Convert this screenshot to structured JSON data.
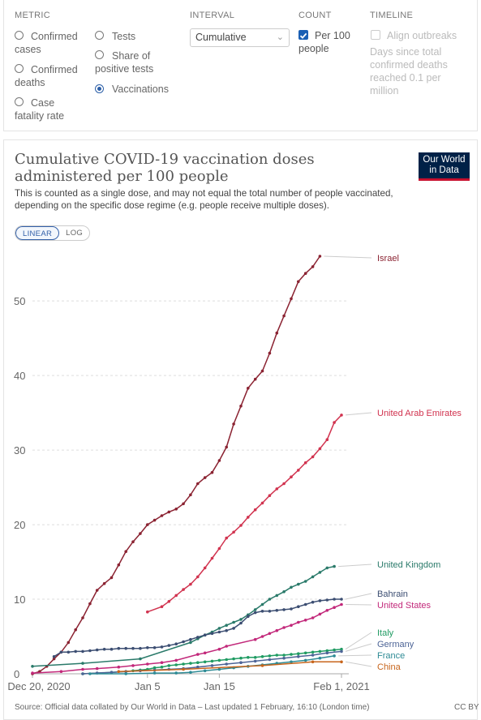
{
  "controls": {
    "metric": {
      "heading": "METRIC",
      "options": [
        "Confirmed cases",
        "Tests",
        "Confirmed deaths",
        "Share of positive tests",
        "Case fatality rate",
        "Vaccinations"
      ],
      "selected": "Vaccinations"
    },
    "interval": {
      "heading": "INTERVAL",
      "value": "Cumulative"
    },
    "count": {
      "heading": "COUNT",
      "label": "Per 100 people",
      "checked": true
    },
    "timeline": {
      "heading": "TIMELINE",
      "label": "Align outbreaks",
      "note": "Days since total confirmed deaths reached 0.1 per million",
      "checked": false
    }
  },
  "logo": {
    "line1": "Our World",
    "line2": "in Data",
    "bg": "#002147",
    "accent": "#c8102e"
  },
  "scale_toggle": {
    "linear": "LINEAR",
    "log": "LOG",
    "active": "LINEAR"
  },
  "footer": {
    "source": "Source: Official data collated by Our World in Data – Last updated 1 February, 16:10 (London time)",
    "license": "CC BY"
  },
  "chart_data": {
    "type": "line",
    "title": "Cumulative COVID-19 vaccination doses administered per 100 people",
    "subtitle": "This is counted as a single dose, and may not equal the total number of people vaccinated, depending on the specific dose regime (e.g. people receive multiple doses).",
    "xlabel": "",
    "ylabel": "",
    "x_ticks": [
      "Dec 20, 2020",
      "Jan 5",
      "Jan 15",
      "Feb 1, 2021"
    ],
    "x_tick_day": [
      0,
      16,
      26,
      43
    ],
    "x_range": [
      "2020-12-19",
      "2021-01-31"
    ],
    "ylim": [
      0,
      56
    ],
    "y_ticks": [
      0,
      10,
      20,
      30,
      40,
      50
    ],
    "grid": "horizontal dashed",
    "legend": "labels at right end of lines",
    "series": [
      {
        "name": "Israel",
        "color": "#8b2332",
        "points": [
          [
            "2020-12-19",
            0
          ],
          [
            "2020-12-20",
            0.3
          ],
          [
            "2020-12-21",
            1.0
          ],
          [
            "2020-12-22",
            2.0
          ],
          [
            "2020-12-23",
            2.9
          ],
          [
            "2020-12-24",
            4.2
          ],
          [
            "2020-12-25",
            5.9
          ],
          [
            "2020-12-26",
            7.5
          ],
          [
            "2020-12-27",
            9.4
          ],
          [
            "2020-12-28",
            11.2
          ],
          [
            "2020-12-29",
            12.1
          ],
          [
            "2020-12-30",
            12.9
          ],
          [
            "2020-12-31",
            14.6
          ],
          [
            "2021-01-01",
            16.4
          ],
          [
            "2021-01-02",
            17.7
          ],
          [
            "2021-01-03",
            18.8
          ],
          [
            "2021-01-04",
            20.0
          ],
          [
            "2021-01-05",
            20.6
          ],
          [
            "2021-01-06",
            21.2
          ],
          [
            "2021-01-07",
            21.7
          ],
          [
            "2021-01-08",
            22.1
          ],
          [
            "2021-01-09",
            22.8
          ],
          [
            "2021-01-10",
            24.0
          ],
          [
            "2021-01-11",
            25.5
          ],
          [
            "2021-01-12",
            26.3
          ],
          [
            "2021-01-13",
            27.0
          ],
          [
            "2021-01-14",
            28.6
          ],
          [
            "2021-01-15",
            30.4
          ],
          [
            "2021-01-16",
            33.5
          ],
          [
            "2021-01-17",
            35.9
          ],
          [
            "2021-01-18",
            38.3
          ],
          [
            "2021-01-19",
            39.5
          ],
          [
            "2021-01-20",
            40.6
          ],
          [
            "2021-01-21",
            43.0
          ],
          [
            "2021-01-22",
            45.7
          ],
          [
            "2021-01-23",
            48.0
          ],
          [
            "2021-01-24",
            50.3
          ],
          [
            "2021-01-25",
            52.6
          ],
          [
            "2021-01-26",
            53.7
          ],
          [
            "2021-01-27",
            54.6
          ],
          [
            "2021-01-28",
            56.0
          ]
        ]
      },
      {
        "name": "United Arab Emirates",
        "color": "#d1334f",
        "points": [
          [
            "2021-01-04",
            8.3
          ],
          [
            "2021-01-06",
            9.0
          ],
          [
            "2021-01-07",
            9.7
          ],
          [
            "2021-01-08",
            10.5
          ],
          [
            "2021-01-09",
            11.3
          ],
          [
            "2021-01-10",
            12.0
          ],
          [
            "2021-01-11",
            13.0
          ],
          [
            "2021-01-12",
            14.2
          ],
          [
            "2021-01-13",
            15.5
          ],
          [
            "2021-01-14",
            16.8
          ],
          [
            "2021-01-15",
            18.2
          ],
          [
            "2021-01-16",
            19.0
          ],
          [
            "2021-01-17",
            19.9
          ],
          [
            "2021-01-18",
            21.0
          ],
          [
            "2021-01-19",
            22.0
          ],
          [
            "2021-01-20",
            22.9
          ],
          [
            "2021-01-21",
            23.9
          ],
          [
            "2021-01-22",
            24.8
          ],
          [
            "2021-01-23",
            25.5
          ],
          [
            "2021-01-24",
            26.4
          ],
          [
            "2021-01-25",
            27.3
          ],
          [
            "2021-01-26",
            28.3
          ],
          [
            "2021-01-27",
            29.1
          ],
          [
            "2021-01-28",
            30.2
          ],
          [
            "2021-01-29",
            31.4
          ],
          [
            "2021-01-30",
            33.7
          ],
          [
            "2021-01-31",
            34.7
          ]
        ]
      },
      {
        "name": "United Kingdom",
        "color": "#2a7a6a",
        "points": [
          [
            "2020-12-19",
            1.0
          ],
          [
            "2020-12-26",
            1.4
          ],
          [
            "2021-01-03",
            2.0
          ],
          [
            "2021-01-10",
            4.2
          ],
          [
            "2021-01-11",
            4.7
          ],
          [
            "2021-01-12",
            5.2
          ],
          [
            "2021-01-13",
            5.6
          ],
          [
            "2021-01-14",
            6.1
          ],
          [
            "2021-01-15",
            6.5
          ],
          [
            "2021-01-16",
            6.9
          ],
          [
            "2021-01-17",
            7.3
          ],
          [
            "2021-01-18",
            7.9
          ],
          [
            "2021-01-19",
            8.6
          ],
          [
            "2021-01-20",
            9.3
          ],
          [
            "2021-01-21",
            10.0
          ],
          [
            "2021-01-22",
            10.5
          ],
          [
            "2021-01-23",
            11.0
          ],
          [
            "2021-01-24",
            11.6
          ],
          [
            "2021-01-25",
            12.0
          ],
          [
            "2021-01-26",
            12.4
          ],
          [
            "2021-01-27",
            13.0
          ],
          [
            "2021-01-28",
            13.6
          ],
          [
            "2021-01-29",
            14.2
          ],
          [
            "2021-01-30",
            14.4
          ]
        ]
      },
      {
        "name": "Bahrain",
        "color": "#3c4e72",
        "points": [
          [
            "2020-12-22",
            2.3
          ],
          [
            "2020-12-23",
            2.9
          ],
          [
            "2020-12-24",
            2.9
          ],
          [
            "2020-12-25",
            3.0
          ],
          [
            "2020-12-26",
            3.0
          ],
          [
            "2020-12-27",
            3.1
          ],
          [
            "2020-12-28",
            3.2
          ],
          [
            "2020-12-29",
            3.3
          ],
          [
            "2020-12-30",
            3.3
          ],
          [
            "2020-12-31",
            3.4
          ],
          [
            "2021-01-01",
            3.4
          ],
          [
            "2021-01-02",
            3.4
          ],
          [
            "2021-01-03",
            3.4
          ],
          [
            "2021-01-04",
            3.5
          ],
          [
            "2021-01-05",
            3.5
          ],
          [
            "2021-01-06",
            3.6
          ],
          [
            "2021-01-07",
            3.8
          ],
          [
            "2021-01-08",
            4.0
          ],
          [
            "2021-01-09",
            4.3
          ],
          [
            "2021-01-10",
            4.6
          ],
          [
            "2021-01-11",
            4.9
          ],
          [
            "2021-01-12",
            5.2
          ],
          [
            "2021-01-13",
            5.4
          ],
          [
            "2021-01-14",
            5.6
          ],
          [
            "2021-01-15",
            5.8
          ],
          [
            "2021-01-16",
            6.1
          ],
          [
            "2021-01-17",
            6.8
          ],
          [
            "2021-01-18",
            7.7
          ],
          [
            "2021-01-19",
            8.2
          ],
          [
            "2021-01-20",
            8.4
          ],
          [
            "2021-01-21",
            8.4
          ],
          [
            "2021-01-22",
            8.5
          ],
          [
            "2021-01-23",
            8.6
          ],
          [
            "2021-01-24",
            8.7
          ],
          [
            "2021-01-25",
            9.0
          ],
          [
            "2021-01-26",
            9.3
          ],
          [
            "2021-01-27",
            9.6
          ],
          [
            "2021-01-28",
            9.8
          ],
          [
            "2021-01-29",
            9.9
          ],
          [
            "2021-01-30",
            10.0
          ],
          [
            "2021-01-31",
            10.0
          ]
        ]
      },
      {
        "name": "United States",
        "color": "#c2287a",
        "points": [
          [
            "2020-12-19",
            0.1
          ],
          [
            "2020-12-23",
            0.3
          ],
          [
            "2020-12-26",
            0.6
          ],
          [
            "2020-12-28",
            0.7
          ],
          [
            "2020-12-31",
            0.9
          ],
          [
            "2021-01-02",
            1.1
          ],
          [
            "2021-01-04",
            1.3
          ],
          [
            "2021-01-06",
            1.5
          ],
          [
            "2021-01-08",
            1.8
          ],
          [
            "2021-01-11",
            2.6
          ],
          [
            "2021-01-12",
            2.8
          ],
          [
            "2021-01-14",
            3.3
          ],
          [
            "2021-01-15",
            3.7
          ],
          [
            "2021-01-19",
            4.6
          ],
          [
            "2021-01-20",
            5.0
          ],
          [
            "2021-01-21",
            5.4
          ],
          [
            "2021-01-22",
            5.8
          ],
          [
            "2021-01-23",
            6.2
          ],
          [
            "2021-01-24",
            6.5
          ],
          [
            "2021-01-25",
            6.9
          ],
          [
            "2021-01-26",
            7.2
          ],
          [
            "2021-01-27",
            7.5
          ],
          [
            "2021-01-28",
            8.0
          ],
          [
            "2021-01-29",
            8.5
          ],
          [
            "2021-01-30",
            8.9
          ],
          [
            "2021-01-31",
            9.3
          ]
        ]
      },
      {
        "name": "Italy",
        "color": "#1f9b62",
        "points": [
          [
            "2020-12-26",
            0.0
          ],
          [
            "2020-12-30",
            0.2
          ],
          [
            "2021-01-01",
            0.3
          ],
          [
            "2021-01-02",
            0.4
          ],
          [
            "2021-01-03",
            0.5
          ],
          [
            "2021-01-04",
            0.6
          ],
          [
            "2021-01-05",
            0.8
          ],
          [
            "2021-01-06",
            0.9
          ],
          [
            "2021-01-07",
            1.1
          ],
          [
            "2021-01-08",
            1.2
          ],
          [
            "2021-01-09",
            1.3
          ],
          [
            "2021-01-10",
            1.4
          ],
          [
            "2021-01-11",
            1.5
          ],
          [
            "2021-01-12",
            1.6
          ],
          [
            "2021-01-13",
            1.7
          ],
          [
            "2021-01-14",
            1.8
          ],
          [
            "2021-01-15",
            1.9
          ],
          [
            "2021-01-16",
            2.0
          ],
          [
            "2021-01-17",
            2.1
          ],
          [
            "2021-01-18",
            2.2
          ],
          [
            "2021-01-19",
            2.2
          ],
          [
            "2021-01-20",
            2.3
          ],
          [
            "2021-01-21",
            2.4
          ],
          [
            "2021-01-22",
            2.5
          ],
          [
            "2021-01-23",
            2.5
          ],
          [
            "2021-01-24",
            2.6
          ],
          [
            "2021-01-25",
            2.7
          ],
          [
            "2021-01-26",
            2.8
          ],
          [
            "2021-01-27",
            2.9
          ],
          [
            "2021-01-28",
            3.0
          ],
          [
            "2021-01-29",
            3.1
          ],
          [
            "2021-01-30",
            3.2
          ],
          [
            "2021-01-31",
            3.3
          ]
        ]
      },
      {
        "name": "Germany",
        "color": "#4d6496",
        "points": [
          [
            "2020-12-26",
            0.0
          ],
          [
            "2020-12-28",
            0.1
          ],
          [
            "2020-12-30",
            0.2
          ],
          [
            "2021-01-01",
            0.3
          ],
          [
            "2021-01-03",
            0.4
          ],
          [
            "2021-01-05",
            0.5
          ],
          [
            "2021-01-07",
            0.6
          ],
          [
            "2021-01-09",
            0.7
          ],
          [
            "2021-01-11",
            0.9
          ],
          [
            "2021-01-13",
            1.1
          ],
          [
            "2021-01-15",
            1.3
          ],
          [
            "2021-01-17",
            1.5
          ],
          [
            "2021-01-19",
            1.7
          ],
          [
            "2021-01-21",
            1.9
          ],
          [
            "2021-01-23",
            2.1
          ],
          [
            "2021-01-25",
            2.3
          ],
          [
            "2021-01-27",
            2.5
          ],
          [
            "2021-01-29",
            2.8
          ],
          [
            "2021-01-31",
            3.0
          ]
        ]
      },
      {
        "name": "France",
        "color": "#2e8b95",
        "points": [
          [
            "2020-12-27",
            0.0
          ],
          [
            "2021-01-01",
            0.0
          ],
          [
            "2021-01-05",
            0.1
          ],
          [
            "2021-01-08",
            0.1
          ],
          [
            "2021-01-10",
            0.2
          ],
          [
            "2021-01-12",
            0.4
          ],
          [
            "2021-01-14",
            0.6
          ],
          [
            "2021-01-16",
            0.8
          ],
          [
            "2021-01-18",
            1.0
          ],
          [
            "2021-01-20",
            1.2
          ],
          [
            "2021-01-22",
            1.4
          ],
          [
            "2021-01-24",
            1.6
          ],
          [
            "2021-01-26",
            1.8
          ],
          [
            "2021-01-28",
            2.1
          ],
          [
            "2021-01-30",
            2.4
          ]
        ]
      },
      {
        "name": "China",
        "color": "#c7651c",
        "points": [
          [
            "2020-12-31",
            0.3
          ],
          [
            "2021-01-09",
            0.6
          ],
          [
            "2021-01-20",
            1.1
          ],
          [
            "2021-01-27",
            1.6
          ],
          [
            "2021-01-31",
            1.6
          ]
        ]
      }
    ]
  }
}
